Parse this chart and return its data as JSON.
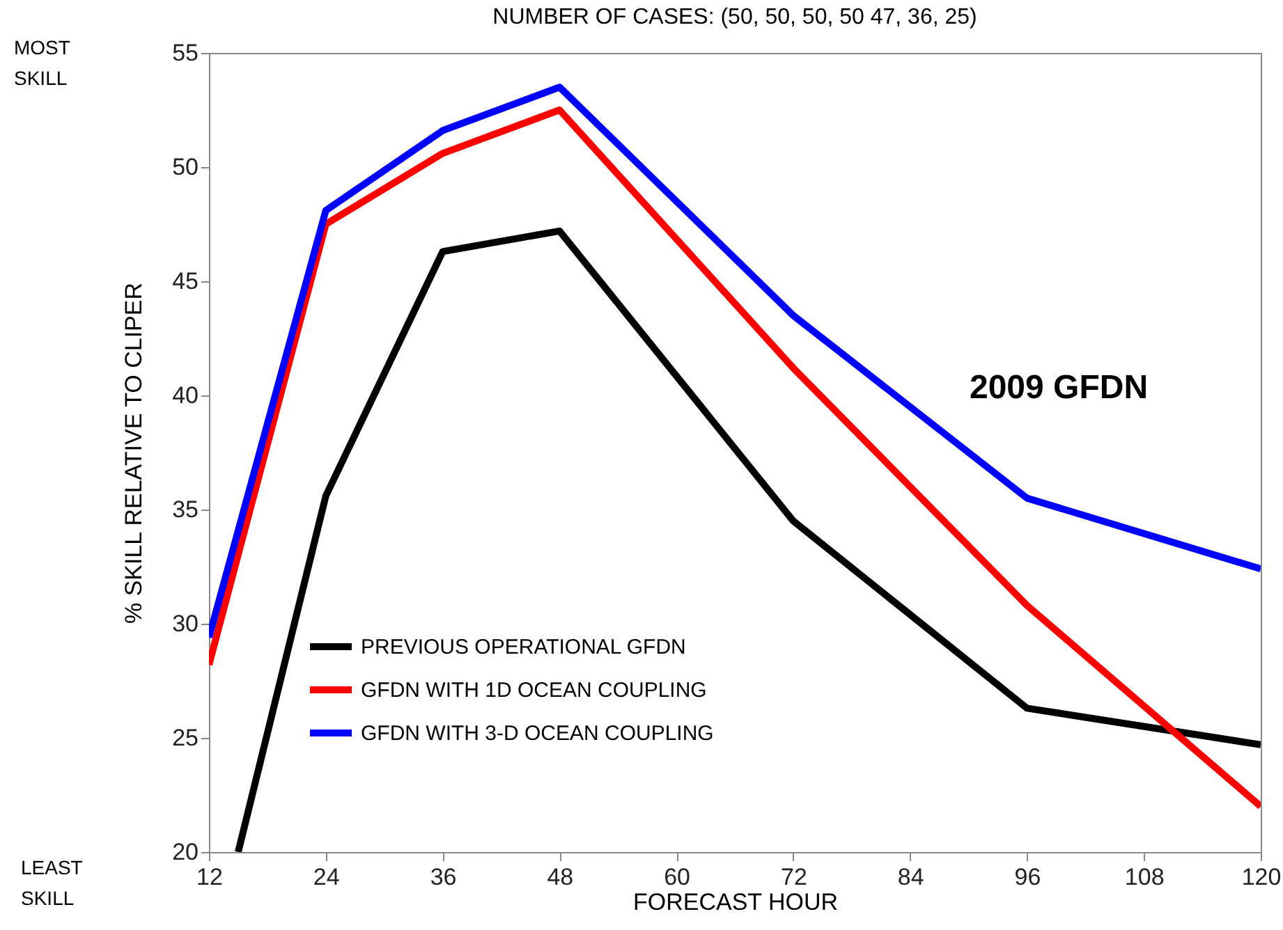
{
  "chart_data": {
    "type": "line",
    "title": "NUMBER OF CASES:  (50,  50, 50, 50 47, 36, 25)",
    "xlabel": "FORECAST HOUR",
    "ylabel": "% SKILL RELATIVE TO CLIPER",
    "x": [
      12,
      24,
      36,
      48,
      72,
      96,
      120
    ],
    "series": [
      {
        "name": "PREVIOUS OPERATIONAL GFDN",
        "color": "#000000",
        "x": [
          15,
          24,
          36,
          48,
          72,
          96,
          120
        ],
        "values": [
          20,
          35.6,
          46.3,
          47.2,
          34.5,
          26.3,
          24.7
        ]
      },
      {
        "name": "GFDN WITH 1D OCEAN COUPLING",
        "color": "#ff0000",
        "values": [
          28.2,
          47.5,
          50.6,
          52.5,
          41.2,
          30.8,
          22.0
        ]
      },
      {
        "name": "GFDN WITH 3-D OCEAN COUPLING",
        "color": "#0000ff",
        "values": [
          29.4,
          48.1,
          51.6,
          53.5,
          43.5,
          35.5,
          32.4
        ]
      }
    ],
    "xlim": [
      12,
      120
    ],
    "xticks": [
      12,
      24,
      36,
      48,
      60,
      72,
      84,
      96,
      108,
      120
    ],
    "ylim": [
      20,
      55
    ],
    "yticks": [
      20,
      25,
      30,
      35,
      40,
      45,
      50,
      55
    ],
    "grid": false,
    "legend": "bottom left",
    "marker": "none",
    "line_style": "solid",
    "annotations": [
      "MOST\nSKILL",
      "LEAST\nSKILL",
      "2009 GFDN"
    ]
  }
}
